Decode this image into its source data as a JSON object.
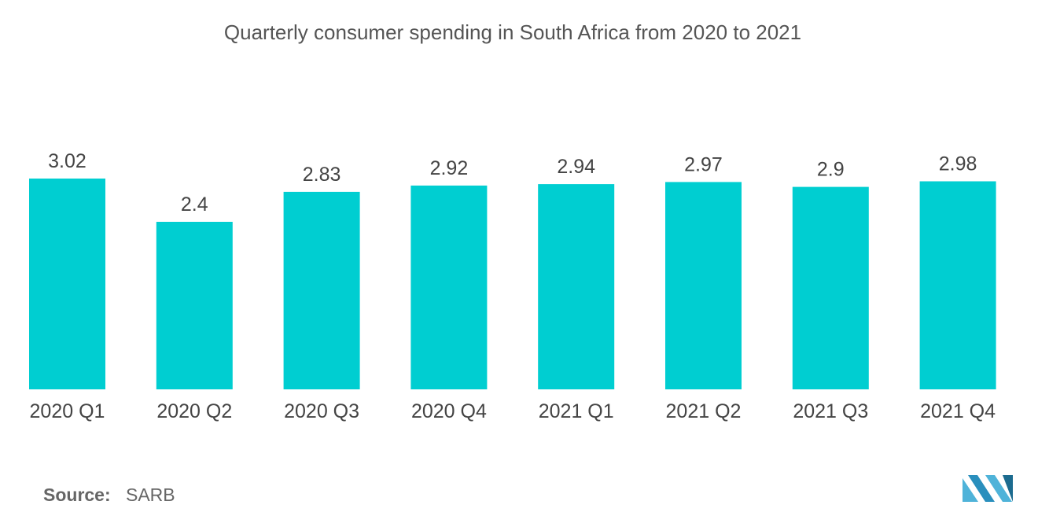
{
  "chart_data": {
    "type": "bar",
    "title": "Quarterly consumer spending in South Africa from 2020 to 2021",
    "categories": [
      "2020 Q1",
      "2020 Q2",
      "2020 Q3",
      "2020 Q4",
      "2021 Q1",
      "2021 Q2",
      "2021 Q3",
      "2021 Q4"
    ],
    "values": [
      3.02,
      2.4,
      2.83,
      2.92,
      2.94,
      2.97,
      2.9,
      2.98
    ],
    "value_labels": [
      "3.02",
      "2.4",
      "2.83",
      "2.92",
      "2.94",
      "2.97",
      "2.9",
      "2.98"
    ],
    "xlabel": "",
    "ylabel": "",
    "ylim": [
      0,
      3.02
    ],
    "grid": false,
    "legend": "none",
    "bar_color": "#00CED1"
  },
  "source": {
    "label": "Source:",
    "value": "SARB"
  },
  "logo": {
    "icon": "mordor-intelligence-logo-icon",
    "colors": [
      "#4fb3d9",
      "#1c6b8f"
    ]
  }
}
